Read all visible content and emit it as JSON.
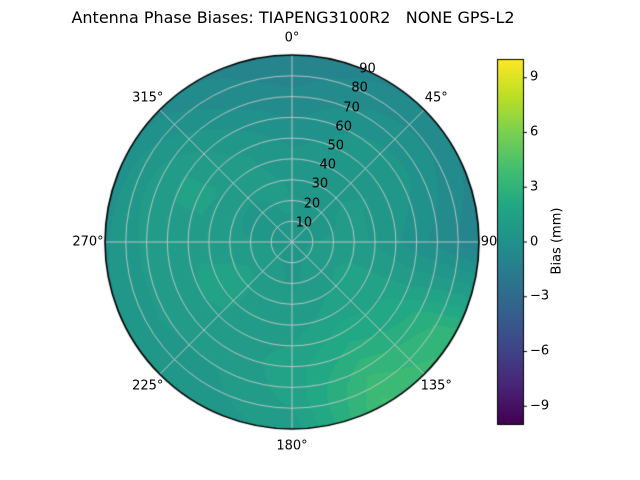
{
  "chart_data": {
    "type": "heatmap",
    "projection": "polar",
    "title": "Antenna Phase Biases: TIAPENG3100R2   NONE GPS-L2",
    "theta_ticks_deg": [
      0,
      45,
      90,
      135,
      180,
      225,
      270,
      315
    ],
    "theta_tick_labels": [
      "0°",
      "45°",
      "90",
      "135°",
      "180°",
      "225°",
      "270°",
      "315°"
    ],
    "r_ticks": [
      10,
      20,
      30,
      40,
      50,
      60,
      70,
      80,
      90
    ],
    "r_max": 90,
    "r_label_angle_deg": 22.5,
    "colorbar": {
      "label": "Bias (mm)",
      "ticks": [
        9,
        6,
        3,
        0,
        -3,
        -6,
        -9
      ],
      "tick_labels": [
        "9",
        "6",
        "3",
        "0",
        "−3",
        "−6",
        "−9"
      ],
      "vmin": -10,
      "vmax": 10,
      "colormap": "viridis"
    },
    "grid": {
      "azimuth_deg": [
        0,
        30,
        60,
        90,
        120,
        150,
        180,
        210,
        240,
        270,
        300,
        330
      ],
      "zenith_deg": [
        0,
        15,
        30,
        45,
        60,
        75,
        90
      ],
      "bias_mm": [
        [
          0.5,
          0.6,
          0.5,
          0.2,
          -0.2,
          -0.6,
          -1.0
        ],
        [
          0.5,
          0.7,
          0.8,
          0.6,
          0.2,
          -0.4,
          -0.9
        ],
        [
          0.5,
          0.8,
          1.0,
          0.8,
          0.3,
          -0.3,
          -0.8
        ],
        [
          0.5,
          0.7,
          0.8,
          0.5,
          0.0,
          -0.5,
          -1.1
        ],
        [
          0.5,
          0.9,
          1.2,
          1.5,
          2.0,
          2.8,
          3.2
        ],
        [
          0.5,
          1.0,
          1.3,
          1.8,
          2.4,
          3.2,
          3.8
        ],
        [
          0.5,
          0.8,
          1.0,
          1.2,
          1.4,
          1.2,
          0.8
        ],
        [
          0.5,
          0.8,
          1.0,
          1.1,
          1.0,
          0.8,
          0.5
        ],
        [
          0.5,
          0.9,
          1.2,
          1.3,
          1.2,
          0.9,
          0.4
        ],
        [
          0.5,
          0.8,
          1.1,
          1.2,
          1.0,
          0.6,
          0.1
        ],
        [
          0.5,
          0.7,
          1.0,
          1.4,
          1.2,
          0.5,
          -0.2
        ],
        [
          0.5,
          0.6,
          0.7,
          0.8,
          0.4,
          -0.2,
          -0.7
        ]
      ]
    },
    "colors": {
      "background": "#ffffff",
      "text": "#000000",
      "grid": "#c8c8c8",
      "outline": "#000000",
      "viridis_stops": [
        "#440154",
        "#482475",
        "#414487",
        "#355f8d",
        "#2a788e",
        "#21918c",
        "#22a884",
        "#44bf70",
        "#7ad151",
        "#bddf26",
        "#fde725"
      ]
    }
  }
}
